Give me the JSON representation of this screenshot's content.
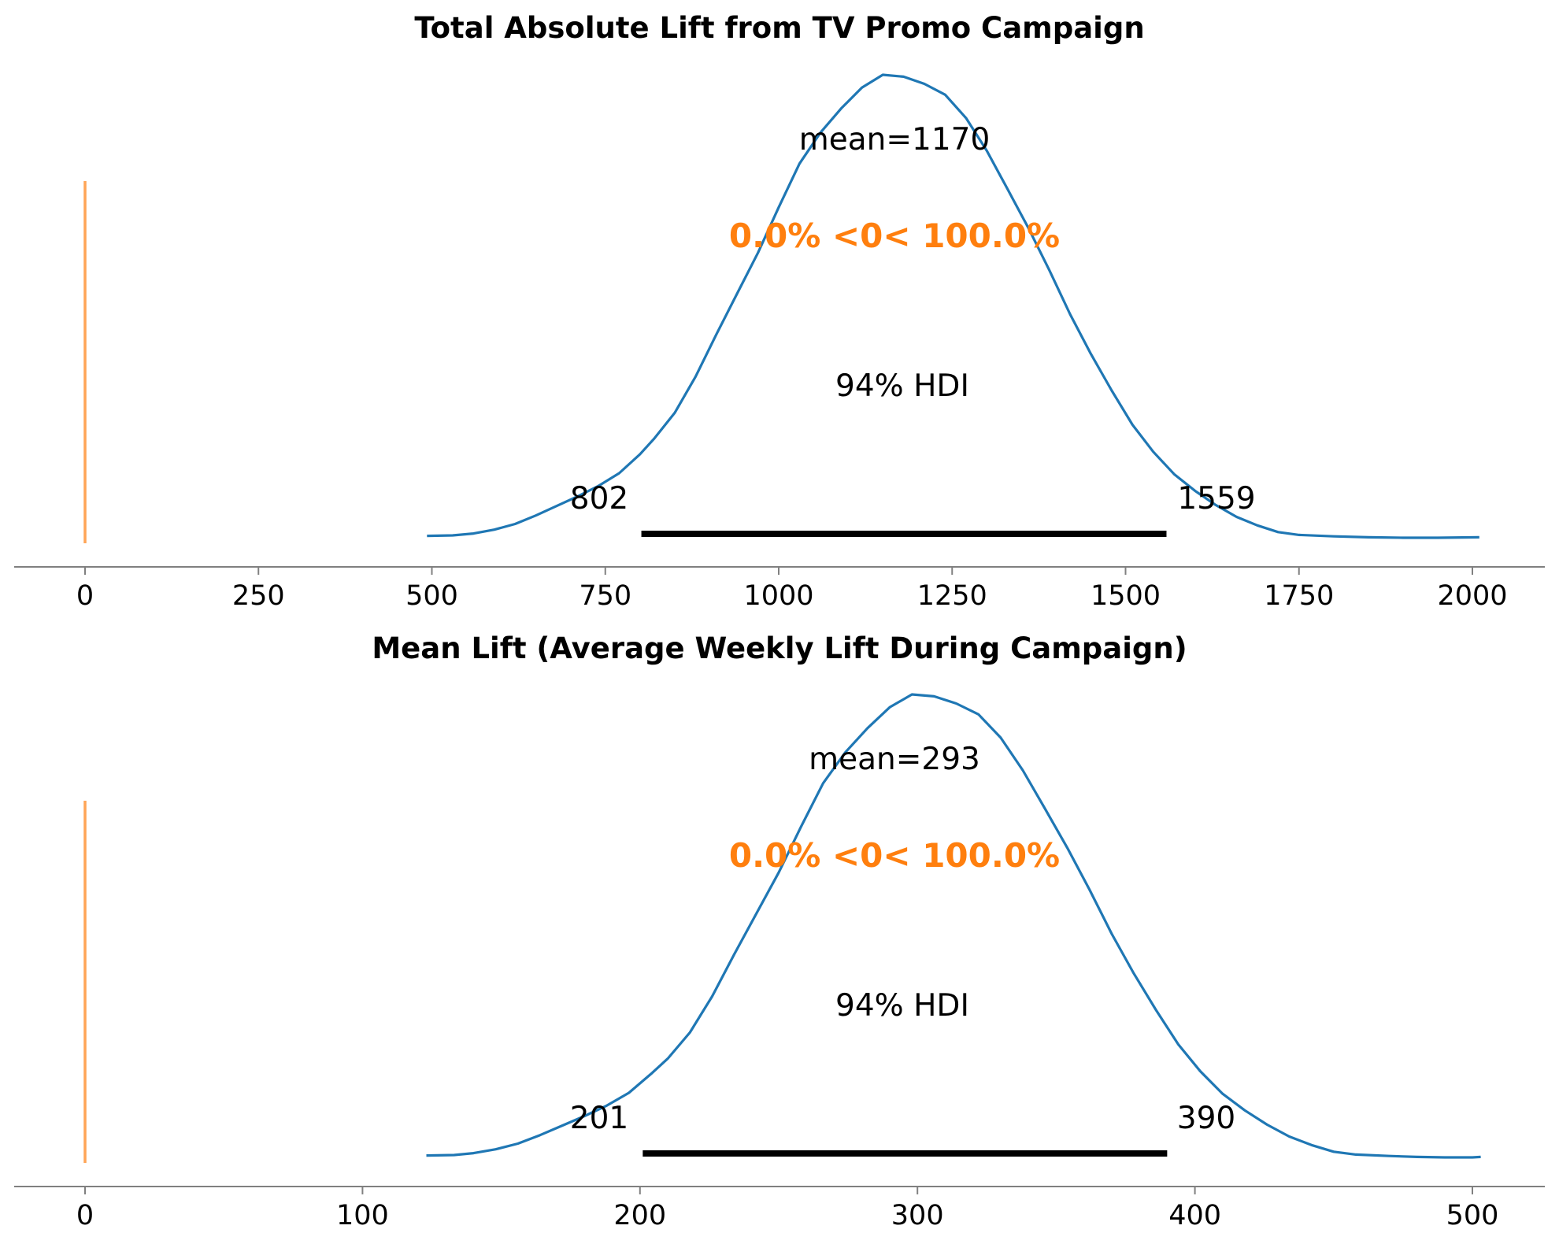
{
  "colors": {
    "density": "#1f77b4",
    "reference": "#ff7f0e",
    "hdi": "#000000",
    "axis": "#808080"
  },
  "chart_data": [
    {
      "type": "line",
      "title": "Total Absolute Lift from TV Promo Campaign",
      "xlabel": "",
      "ylabel": "",
      "xlim": [
        -25,
        2030
      ],
      "grid": false,
      "xticks": [
        0,
        250,
        500,
        750,
        1000,
        1250,
        1500,
        1750,
        2000
      ],
      "xtick_labels": [
        "0",
        "250",
        "500",
        "750",
        "1000",
        "1250",
        "1500",
        "1750",
        "2000"
      ],
      "reference_value": 0,
      "ref_text": "0.0% <0< 100.0%",
      "mean": 1170,
      "mean_text": "mean=1170",
      "hdi_prob_text": "94% HDI",
      "hdi": [
        802,
        1559
      ],
      "hdi_labels": [
        "802",
        "1559"
      ],
      "density": {
        "x": [
          493,
          530,
          560,
          590,
          620,
          650,
          680,
          710,
          740,
          770,
          800,
          820,
          850,
          880,
          910,
          940,
          970,
          1000,
          1030,
          1060,
          1090,
          1120,
          1150,
          1180,
          1210,
          1240,
          1270,
          1300,
          1330,
          1360,
          1390,
          1420,
          1450,
          1480,
          1510,
          1540,
          1570,
          1600,
          1630,
          1660,
          1690,
          1720,
          1750,
          1800,
          1850,
          1900,
          1950,
          2010
        ],
        "y": [
          0.0003,
          0.0004,
          0.0008,
          0.0016,
          0.0028,
          0.0046,
          0.0066,
          0.0086,
          0.0108,
          0.0135,
          0.0175,
          0.0207,
          0.0262,
          0.0338,
          0.0427,
          0.0513,
          0.0599,
          0.0695,
          0.0787,
          0.0852,
          0.0903,
          0.0947,
          0.0974,
          0.097,
          0.0955,
          0.0932,
          0.0883,
          0.0814,
          0.0733,
          0.0651,
          0.0563,
          0.047,
          0.0386,
          0.0309,
          0.0237,
          0.018,
          0.0133,
          0.0098,
          0.0068,
          0.0043,
          0.0025,
          0.0011,
          0.0005,
          0.0002,
          0.0,
          -0.0001,
          -0.0001,
          0.0
        ]
      }
    },
    {
      "type": "line",
      "title": "Mean Lift (Average Weekly Lift During Campaign)",
      "xlabel": "",
      "ylabel": "",
      "xlim": [
        -25,
        527
      ],
      "grid": false,
      "xticks": [
        0,
        100,
        200,
        300,
        400,
        500
      ],
      "xtick_labels": [
        "0",
        "100",
        "200",
        "300",
        "400",
        "500"
      ],
      "reference_value": 0,
      "ref_text": "0.0% <0< 100.0%",
      "mean": 293,
      "mean_text": "mean=293",
      "hdi_prob_text": "94% HDI",
      "hdi": [
        201,
        390
      ],
      "hdi_labels": [
        "201",
        "390"
      ],
      "density": {
        "x": [
          123,
          133,
          140,
          148,
          156,
          164,
          172,
          180,
          188,
          196,
          204,
          210,
          218,
          226,
          234,
          242,
          250,
          258,
          266,
          274,
          282,
          290,
          298,
          306,
          314,
          322,
          330,
          338,
          346,
          354,
          362,
          370,
          378,
          386,
          394,
          402,
          410,
          418,
          426,
          434,
          442,
          450,
          458,
          470,
          480,
          490,
          500,
          503
        ],
        "y": [
          0.0012,
          0.0016,
          0.0032,
          0.0064,
          0.0112,
          0.0184,
          0.0264,
          0.0344,
          0.0432,
          0.054,
          0.07,
          0.0828,
          0.1048,
          0.1352,
          0.1708,
          0.2052,
          0.2396,
          0.278,
          0.3148,
          0.3408,
          0.3612,
          0.3788,
          0.3896,
          0.388,
          0.382,
          0.3728,
          0.3532,
          0.3256,
          0.2932,
          0.2604,
          0.2252,
          0.188,
          0.1544,
          0.1236,
          0.0948,
          0.072,
          0.0532,
          0.0392,
          0.0272,
          0.0172,
          0.01,
          0.0044,
          0.002,
          0.0008,
          0.0,
          -0.0004,
          -0.0004,
          0.0
        ]
      }
    }
  ]
}
